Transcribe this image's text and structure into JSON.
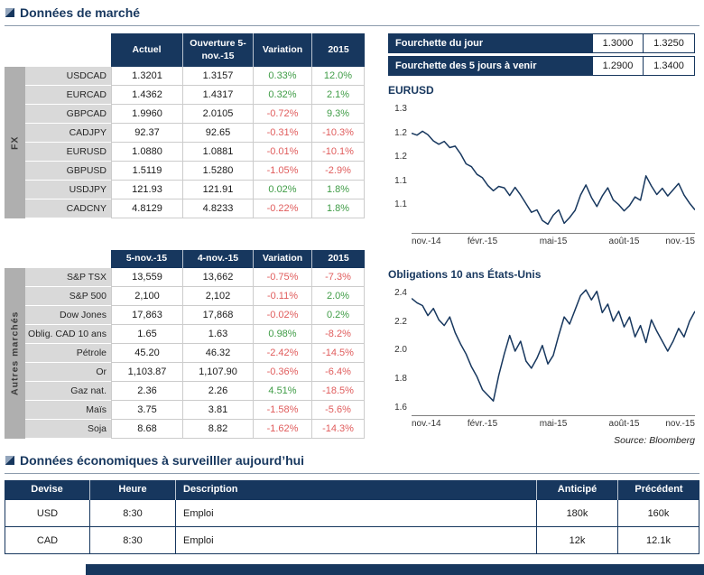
{
  "theme": {
    "navy": "#17375E",
    "positive": "#3F9C46",
    "negative": "#E05C5C"
  },
  "sections": {
    "market": {
      "title": "Données de marché"
    },
    "economic": {
      "title": "Données économiques à surveilller aujourd’hui"
    }
  },
  "fourchette": {
    "rows": [
      {
        "label": "Fourchette du  jour",
        "low": "1.3000",
        "high": "1.3250"
      },
      {
        "label": "Fourchette des 5 jours à venir",
        "low": "1.2900",
        "high": "1.3400"
      }
    ]
  },
  "fx_table": {
    "side_label": "FX",
    "headers": [
      "Actuel",
      "Ouverture 5-nov.-15",
      "Variation",
      "2015"
    ],
    "colored_columns": [
      3,
      4
    ],
    "rows": [
      {
        "label": "USDCAD",
        "values": [
          "1.3201",
          "1.3157",
          "0.33%",
          "12.0%"
        ]
      },
      {
        "label": "EURCAD",
        "values": [
          "1.4362",
          "1.4317",
          "0.32%",
          "2.1%"
        ]
      },
      {
        "label": "GBPCAD",
        "values": [
          "1.9960",
          "2.0105",
          "-0.72%",
          "9.3%"
        ]
      },
      {
        "label": "CADJPY",
        "values": [
          "92.37",
          "92.65",
          "-0.31%",
          "-10.3%"
        ]
      },
      {
        "label": "EURUSD",
        "values": [
          "1.0880",
          "1.0881",
          "-0.01%",
          "-10.1%"
        ]
      },
      {
        "label": "GBPUSD",
        "values": [
          "1.5119",
          "1.5280",
          "-1.05%",
          "-2.9%"
        ]
      },
      {
        "label": "USDJPY",
        "values": [
          "121.93",
          "121.91",
          "0.02%",
          "1.8%"
        ]
      },
      {
        "label": "CADCNY",
        "values": [
          "4.8129",
          "4.8233",
          "-0.22%",
          "1.8%"
        ]
      }
    ]
  },
  "autres_table": {
    "side_label": "Autres marchés",
    "headers": [
      "5-nov.-15",
      "4-nov.-15",
      "Variation",
      "2015"
    ],
    "colored_columns": [
      3,
      4
    ],
    "rows": [
      {
        "label": "S&P TSX",
        "values": [
          "13,559",
          "13,662",
          "-0.75%",
          "-7.3%"
        ]
      },
      {
        "label": "S&P 500",
        "values": [
          "2,100",
          "2,102",
          "-0.11%",
          "2.0%"
        ]
      },
      {
        "label": "Dow Jones",
        "values": [
          "17,863",
          "17,868",
          "-0.02%",
          "0.2%"
        ]
      },
      {
        "label": "Oblig. CAD 10 ans",
        "values": [
          "1.65",
          "1.63",
          "0.98%",
          "-8.2%"
        ]
      },
      {
        "label": "Pétrole",
        "values": [
          "45.20",
          "46.32",
          "-2.42%",
          "-14.5%"
        ]
      },
      {
        "label": "Or",
        "values": [
          "1,103.87",
          "1,107.90",
          "-0.36%",
          "-6.4%"
        ]
      },
      {
        "label": "Gaz nat.",
        "values": [
          "2.36",
          "2.26",
          "4.51%",
          "-18.5%"
        ]
      },
      {
        "label": "Maïs",
        "values": [
          "3.75",
          "3.81",
          "-1.58%",
          "-5.6%"
        ]
      },
      {
        "label": "Soja",
        "values": [
          "8.68",
          "8.82",
          "-1.62%",
          "-14.3%"
        ]
      }
    ]
  },
  "chart_data": [
    {
      "type": "line",
      "title": "EURUSD",
      "x_labels": [
        "nov.-14",
        "févr.-15",
        "mai-15",
        "août-15",
        "nov.-15"
      ],
      "y_tick_labels": [
        "1.3",
        "1.2",
        "1.2",
        "1.1",
        "1.1"
      ],
      "y_tick_values": [
        1.3,
        1.25,
        1.2,
        1.15,
        1.1
      ],
      "ylim": [
        1.04,
        1.315
      ],
      "values": [
        1.248,
        1.244,
        1.252,
        1.245,
        1.232,
        1.225,
        1.231,
        1.218,
        1.221,
        1.205,
        1.184,
        1.178,
        1.162,
        1.155,
        1.139,
        1.128,
        1.137,
        1.134,
        1.118,
        1.135,
        1.119,
        1.101,
        1.083,
        1.088,
        1.066,
        1.058,
        1.077,
        1.088,
        1.06,
        1.072,
        1.087,
        1.119,
        1.14,
        1.114,
        1.095,
        1.117,
        1.134,
        1.109,
        1.099,
        1.086,
        1.097,
        1.115,
        1.108,
        1.159,
        1.138,
        1.12,
        1.133,
        1.117,
        1.13,
        1.143,
        1.119,
        1.102,
        1.088
      ]
    },
    {
      "type": "line",
      "title": "Obligations 10 ans États-Unis",
      "x_labels": [
        "nov.-14",
        "févr.-15",
        "mai-15",
        "août-15",
        "nov.-15"
      ],
      "y_tick_labels": [
        "2.4",
        "2.2",
        "2.0",
        "1.8",
        "1.6"
      ],
      "y_tick_values": [
        2.4,
        2.2,
        2.0,
        1.8,
        1.6
      ],
      "ylim": [
        1.54,
        2.44
      ],
      "values": [
        2.36,
        2.33,
        2.31,
        2.24,
        2.29,
        2.21,
        2.17,
        2.23,
        2.12,
        2.04,
        1.97,
        1.88,
        1.81,
        1.72,
        1.68,
        1.64,
        1.82,
        1.97,
        2.1,
        1.99,
        2.06,
        1.92,
        1.87,
        1.94,
        2.03,
        1.9,
        1.96,
        2.1,
        2.23,
        2.18,
        2.28,
        2.38,
        2.42,
        2.35,
        2.41,
        2.26,
        2.32,
        2.2,
        2.27,
        2.16,
        2.23,
        2.09,
        2.17,
        2.05,
        2.21,
        2.13,
        2.06,
        1.99,
        2.06,
        2.15,
        2.09,
        2.2,
        2.27
      ]
    }
  ],
  "source": "Source: Bloomberg",
  "economic_table": {
    "headers": [
      "Devise",
      "Heure",
      "Description",
      "Anticipé",
      "Précédent"
    ],
    "rows": [
      {
        "values": [
          "USD",
          "8:30",
          "Emploi",
          "180k",
          "160k"
        ]
      },
      {
        "values": [
          "CAD",
          "8:30",
          "Emploi",
          "12k",
          "12.1k"
        ]
      }
    ]
  }
}
